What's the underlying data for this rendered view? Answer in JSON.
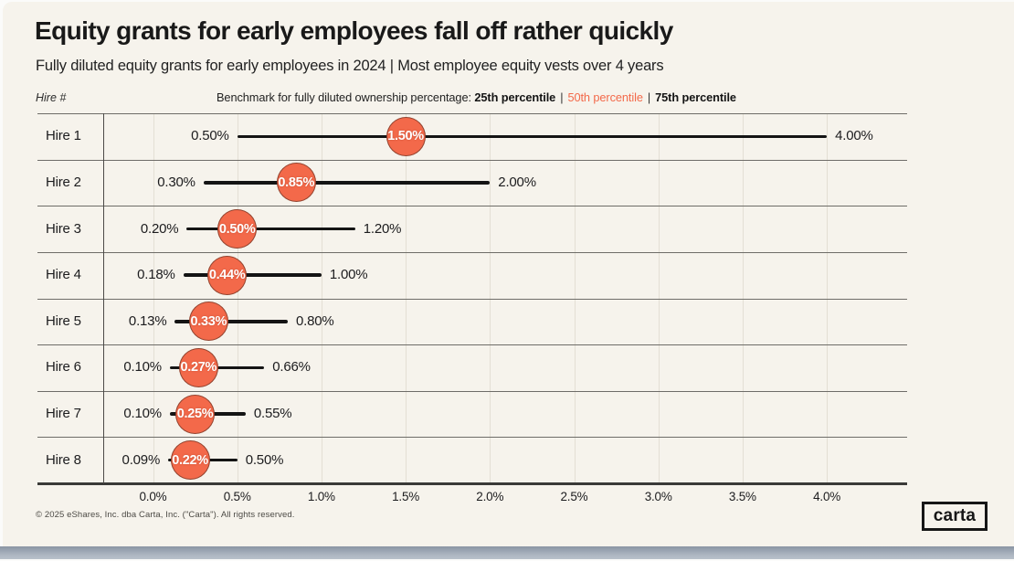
{
  "page": {
    "background_color": "#F6F3EC",
    "bottom_bar_color": "#9AA5B2"
  },
  "header": {
    "title": "Equity grants for early employees fall off rather quickly",
    "subtitle": "Fully diluted equity grants for early employees in 2024 | Most employee equity vests over 4 years",
    "hire_axis_label": "Hire #",
    "benchmark": {
      "prefix": "Benchmark for fully diluted ownership percentage: ",
      "p25_label": "25th percentile",
      "separator": "|",
      "p50_label": "50th percentile",
      "p75_label": "75th percentile"
    }
  },
  "footer": {
    "copyright": "© 2025 eShares, Inc. dba Carta, Inc. (\"Carta\"). All rights reserved.",
    "logo_text": "carta"
  },
  "colors": {
    "accent_orange": "#F3694A",
    "range_line_black": "#141414",
    "gridline": "#E3DFD4",
    "row_line": "#6E6C68",
    "axis_line": "#3A3A38",
    "text_dark": "#1C1C1E"
  },
  "chart_data": {
    "type": "dumbbell",
    "title": "Equity grants for early employees fall off rather quickly",
    "subtitle": "Fully diluted equity grants for early employees in 2024 | Most employee equity vests over 4 years",
    "xlabel": "Fully diluted ownership percentage",
    "ylabel": "Hire #",
    "xlim": [
      -0.3,
      4.48
    ],
    "grid": true,
    "legend": "25th percentile | 50th percentile (orange median bubble) | 75th percentile",
    "x_ticks": [
      {
        "value": 0.0,
        "label": "0.0%"
      },
      {
        "value": 0.5,
        "label": "0.5%"
      },
      {
        "value": 1.0,
        "label": "1.0%"
      },
      {
        "value": 1.5,
        "label": "1.5%"
      },
      {
        "value": 2.0,
        "label": "2.0%"
      },
      {
        "value": 2.5,
        "label": "2.5%"
      },
      {
        "value": 3.0,
        "label": "3.0%"
      },
      {
        "value": 3.5,
        "label": "3.5%"
      },
      {
        "value": 4.0,
        "label": "4.0%"
      }
    ],
    "rows": [
      {
        "label": "Hire 1",
        "p25": 0.5,
        "p50": 1.5,
        "p75": 4.0,
        "p25_label": "0.50%",
        "p50_label": "1.50%",
        "p75_label": "4.00%"
      },
      {
        "label": "Hire 2",
        "p25": 0.3,
        "p50": 0.85,
        "p75": 2.0,
        "p25_label": "0.30%",
        "p50_label": "0.85%",
        "p75_label": "2.00%"
      },
      {
        "label": "Hire 3",
        "p25": 0.2,
        "p50": 0.5,
        "p75": 1.2,
        "p25_label": "0.20%",
        "p50_label": "0.50%",
        "p75_label": "1.20%"
      },
      {
        "label": "Hire 4",
        "p25": 0.18,
        "p50": 0.44,
        "p75": 1.0,
        "p25_label": "0.18%",
        "p50_label": "0.44%",
        "p75_label": "1.00%"
      },
      {
        "label": "Hire 5",
        "p25": 0.13,
        "p50": 0.33,
        "p75": 0.8,
        "p25_label": "0.13%",
        "p50_label": "0.33%",
        "p75_label": "0.80%"
      },
      {
        "label": "Hire 6",
        "p25": 0.1,
        "p50": 0.27,
        "p75": 0.66,
        "p25_label": "0.10%",
        "p50_label": "0.27%",
        "p75_label": "0.66%"
      },
      {
        "label": "Hire 7",
        "p25": 0.1,
        "p50": 0.25,
        "p75": 0.55,
        "p25_label": "0.10%",
        "p50_label": "0.25%",
        "p75_label": "0.55%"
      },
      {
        "label": "Hire 8",
        "p25": 0.09,
        "p50": 0.22,
        "p75": 0.5,
        "p25_label": "0.09%",
        "p50_label": "0.22%",
        "p75_label": "0.50%"
      }
    ]
  }
}
